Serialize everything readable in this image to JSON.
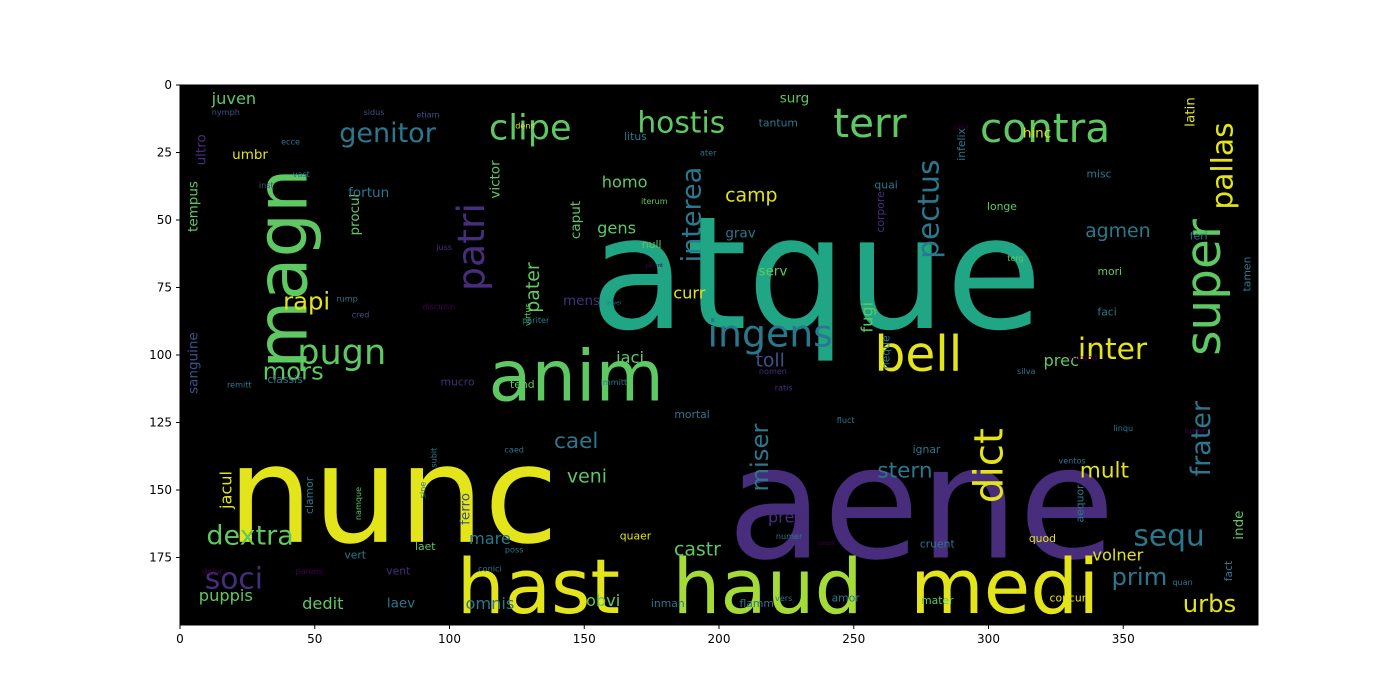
{
  "chart_data": {
    "type": "wordcloud-image",
    "x_axis": {
      "ticks": [
        0,
        50,
        100,
        150,
        200,
        250,
        300,
        350
      ],
      "range": [
        0,
        400
      ]
    },
    "y_axis": {
      "ticks": [
        0,
        25,
        50,
        75,
        100,
        125,
        150,
        175
      ],
      "range": [
        0,
        200
      ],
      "inverted": true
    },
    "background": "#000000",
    "colors": {
      "yellow": "#e3e419",
      "lime": "#a5db36",
      "green": "#5ec962",
      "teal": "#21a685",
      "cyan": "#2a788e",
      "blue": "#3b528b",
      "violet": "#472d7b",
      "purple": "#440154"
    },
    "words": [
      {
        "text": "atque",
        "x": 236,
        "y": 70,
        "size": 58,
        "color": "teal"
      },
      {
        "text": "aene",
        "x": 275,
        "y": 155,
        "size": 58,
        "color": "violet"
      },
      {
        "text": "nunc",
        "x": 79,
        "y": 152,
        "size": 50,
        "color": "yellow"
      },
      {
        "text": "haud",
        "x": 218,
        "y": 186,
        "size": 28,
        "color": "lime"
      },
      {
        "text": "medi",
        "x": 306,
        "y": 186,
        "size": 28,
        "color": "yellow"
      },
      {
        "text": "hast",
        "x": 133,
        "y": 186,
        "size": 28,
        "color": "yellow"
      },
      {
        "text": "anim",
        "x": 147,
        "y": 108,
        "size": 26,
        "color": "green"
      },
      {
        "text": "magn",
        "x": 38,
        "y": 68,
        "size": 26,
        "color": "green",
        "rotate": true
      },
      {
        "text": "bell",
        "x": 274,
        "y": 100,
        "size": 18,
        "color": "yellow"
      },
      {
        "text": "super",
        "x": 380,
        "y": 75,
        "size": 18,
        "color": "green",
        "rotate": true
      },
      {
        "text": "contra",
        "x": 321,
        "y": 16,
        "size": 15,
        "color": "green"
      },
      {
        "text": "terr",
        "x": 256,
        "y": 14,
        "size": 15,
        "color": "green"
      },
      {
        "text": "ingens",
        "x": 219,
        "y": 92,
        "size": 14,
        "color": "cyan"
      },
      {
        "text": "dict",
        "x": 300,
        "y": 141,
        "size": 15,
        "color": "yellow",
        "rotate": true
      },
      {
        "text": "patri",
        "x": 108,
        "y": 60,
        "size": 14,
        "color": "violet",
        "rotate": true
      },
      {
        "text": "pugn",
        "x": 60,
        "y": 99,
        "size": 13,
        "color": "green"
      },
      {
        "text": "clipe",
        "x": 130,
        "y": 16,
        "size": 13,
        "color": "green"
      },
      {
        "text": "hostis",
        "x": 186,
        "y": 14,
        "size": 11,
        "color": "green"
      },
      {
        "text": "genitor",
        "x": 77,
        "y": 18,
        "size": 10,
        "color": "cyan"
      },
      {
        "text": "pectus",
        "x": 278,
        "y": 46,
        "size": 11,
        "color": "cyan",
        "rotate": true
      },
      {
        "text": "pallas",
        "x": 387,
        "y": 30,
        "size": 11,
        "color": "yellow",
        "rotate": true
      },
      {
        "text": "interea",
        "x": 190,
        "y": 48,
        "size": 10,
        "color": "cyan",
        "rotate": true
      },
      {
        "text": "inter",
        "x": 346,
        "y": 98,
        "size": 11,
        "color": "yellow"
      },
      {
        "text": "sequ",
        "x": 367,
        "y": 167,
        "size": 11,
        "color": "cyan"
      },
      {
        "text": "dextra",
        "x": 26,
        "y": 167,
        "size": 10,
        "color": "green"
      },
      {
        "text": "soci",
        "x": 20,
        "y": 183,
        "size": 11,
        "color": "violet"
      },
      {
        "text": "frater",
        "x": 379,
        "y": 131,
        "size": 10,
        "color": "cyan",
        "rotate": true
      },
      {
        "text": "miser",
        "x": 215,
        "y": 138,
        "size": 9,
        "color": "cyan",
        "rotate": true
      },
      {
        "text": "mors",
        "x": 42,
        "y": 106,
        "size": 9,
        "color": "green"
      },
      {
        "text": "rapi",
        "x": 47,
        "y": 80,
        "size": 9,
        "color": "yellow"
      },
      {
        "text": "urbs",
        "x": 382,
        "y": 192,
        "size": 9,
        "color": "yellow"
      },
      {
        "text": "prim",
        "x": 356,
        "y": 182,
        "size": 9,
        "color": "cyan"
      },
      {
        "text": "stern",
        "x": 269,
        "y": 143,
        "size": 8,
        "color": "cyan"
      },
      {
        "text": "mult",
        "x": 343,
        "y": 143,
        "size": 8,
        "color": "yellow"
      },
      {
        "text": "cael",
        "x": 147,
        "y": 132,
        "size": 8,
        "color": "cyan"
      },
      {
        "text": "veni",
        "x": 151,
        "y": 145,
        "size": 7,
        "color": "green"
      },
      {
        "text": "pater",
        "x": 131,
        "y": 75,
        "size": 7,
        "color": "green",
        "rotate": true
      },
      {
        "text": "agmen",
        "x": 348,
        "y": 54,
        "size": 7,
        "color": "cyan"
      },
      {
        "text": "camp",
        "x": 212,
        "y": 41,
        "size": 7,
        "color": "yellow"
      },
      {
        "text": "homo",
        "x": 165,
        "y": 36,
        "size": 6,
        "color": "green"
      },
      {
        "text": "gens",
        "x": 162,
        "y": 53,
        "size": 6,
        "color": "green"
      },
      {
        "text": "curr",
        "x": 189,
        "y": 77,
        "size": 6,
        "color": "yellow"
      },
      {
        "text": "toll",
        "x": 219,
        "y": 102,
        "size": 7,
        "color": "blue"
      },
      {
        "text": "jaci",
        "x": 167,
        "y": 101,
        "size": 6,
        "color": "green"
      },
      {
        "text": "prec",
        "x": 327,
        "y": 102,
        "size": 6,
        "color": "green"
      },
      {
        "text": "prem",
        "x": 226,
        "y": 160,
        "size": 6,
        "color": "violet"
      },
      {
        "text": "castr",
        "x": 192,
        "y": 172,
        "size": 7,
        "color": "green"
      },
      {
        "text": "mare",
        "x": 115,
        "y": 168,
        "size": 6,
        "color": "cyan"
      },
      {
        "text": "obvi",
        "x": 157,
        "y": 191,
        "size": 6,
        "color": "green"
      },
      {
        "text": "omnis",
        "x": 115,
        "y": 192,
        "size": 6,
        "color": "cyan"
      },
      {
        "text": "dedit",
        "x": 53,
        "y": 192,
        "size": 6,
        "color": "green"
      },
      {
        "text": "laev",
        "x": 82,
        "y": 192,
        "size": 5,
        "color": "cyan"
      },
      {
        "text": "puppis",
        "x": 17,
        "y": 189,
        "size": 6,
        "color": "green"
      },
      {
        "text": "volner",
        "x": 348,
        "y": 174,
        "size": 6,
        "color": "yellow"
      },
      {
        "text": "juven",
        "x": 20,
        "y": 5,
        "size": 6,
        "color": "green"
      },
      {
        "text": "procul",
        "x": 65,
        "y": 48,
        "size": 5,
        "color": "green",
        "rotate": true
      },
      {
        "text": "fortun",
        "x": 70,
        "y": 40,
        "size": 5,
        "color": "cyan"
      },
      {
        "text": "fugi",
        "x": 255,
        "y": 86,
        "size": 6,
        "color": "green",
        "rotate": true
      },
      {
        "text": "inde",
        "x": 393,
        "y": 163,
        "size": 5,
        "color": "green",
        "rotate": true
      },
      {
        "text": "latin",
        "x": 375,
        "y": 10,
        "size": 5,
        "color": "yellow",
        "rotate": true
      },
      {
        "text": "ultro",
        "x": 8,
        "y": 24,
        "size": 5,
        "color": "violet",
        "rotate": true
      },
      {
        "text": "umbr",
        "x": 26,
        "y": 26,
        "size": 5,
        "color": "yellow"
      },
      {
        "text": "tempus",
        "x": 5,
        "y": 45,
        "size": 5,
        "color": "green",
        "rotate": true
      },
      {
        "text": "sanguine",
        "x": 5,
        "y": 103,
        "size": 5,
        "color": "blue",
        "rotate": true
      },
      {
        "text": "jacul",
        "x": 17,
        "y": 150,
        "size": 6,
        "color": "yellow",
        "rotate": true
      },
      {
        "text": "ferro",
        "x": 106,
        "y": 157,
        "size": 5,
        "color": "blue",
        "rotate": true
      },
      {
        "text": "surg",
        "x": 228,
        "y": 5,
        "size": 5,
        "color": "green"
      },
      {
        "text": "hinc",
        "x": 318,
        "y": 18,
        "size": 5,
        "color": "yellow"
      },
      {
        "text": "victor",
        "x": 117,
        "y": 35,
        "size": 5,
        "color": "green",
        "rotate": true
      },
      {
        "text": "caput",
        "x": 147,
        "y": 50,
        "size": 5,
        "color": "green",
        "rotate": true
      },
      {
        "text": "grav",
        "x": 208,
        "y": 55,
        "size": 5,
        "color": "cyan"
      },
      {
        "text": "serv",
        "x": 220,
        "y": 69,
        "size": 5,
        "color": "green"
      },
      {
        "text": "null",
        "x": 175,
        "y": 59,
        "size": 4,
        "color": "green"
      },
      {
        "text": "mens",
        "x": 149,
        "y": 80,
        "size": 5,
        "color": "violet"
      },
      {
        "text": "corpore",
        "x": 260,
        "y": 47,
        "size": 4,
        "color": "violet",
        "rotate": true
      },
      {
        "text": "quai",
        "x": 262,
        "y": 37,
        "size": 4,
        "color": "cyan"
      },
      {
        "text": "infelix",
        "x": 290,
        "y": 22,
        "size": 4,
        "color": "cyan",
        "rotate": true
      },
      {
        "text": "longe",
        "x": 305,
        "y": 45,
        "size": 4,
        "color": "green"
      },
      {
        "text": "mori",
        "x": 345,
        "y": 69,
        "size": 4,
        "color": "green"
      },
      {
        "text": "misc",
        "x": 341,
        "y": 33,
        "size": 4,
        "color": "cyan"
      },
      {
        "text": "feri",
        "x": 378,
        "y": 56,
        "size": 4,
        "color": "cyan"
      },
      {
        "text": "faci",
        "x": 344,
        "y": 84,
        "size": 4,
        "color": "cyan"
      },
      {
        "text": "tamen",
        "x": 396,
        "y": 70,
        "size": 4,
        "color": "cyan",
        "rotate": true
      },
      {
        "text": "neque",
        "x": 262,
        "y": 99,
        "size": 4,
        "color": "cyan",
        "rotate": true
      },
      {
        "text": "aequor",
        "x": 334,
        "y": 155,
        "size": 4,
        "color": "cyan",
        "rotate": true
      },
      {
        "text": "quod",
        "x": 320,
        "y": 168,
        "size": 4,
        "color": "yellow"
      },
      {
        "text": "fact",
        "x": 389,
        "y": 180,
        "size": 4,
        "color": "cyan",
        "rotate": true
      },
      {
        "text": "cruent",
        "x": 281,
        "y": 170,
        "size": 4,
        "color": "cyan"
      },
      {
        "text": "mater",
        "x": 281,
        "y": 191,
        "size": 4,
        "color": "green"
      },
      {
        "text": "concuri",
        "x": 330,
        "y": 190,
        "size": 4,
        "color": "yellow"
      },
      {
        "text": "amor",
        "x": 247,
        "y": 190,
        "size": 4,
        "color": "cyan"
      },
      {
        "text": "flamm",
        "x": 214,
        "y": 192,
        "size": 4,
        "color": "cyan"
      },
      {
        "text": "inman",
        "x": 181,
        "y": 192,
        "size": 4,
        "color": "cyan"
      },
      {
        "text": "laet",
        "x": 91,
        "y": 171,
        "size": 4,
        "color": "green"
      },
      {
        "text": "classis",
        "x": 39,
        "y": 109,
        "size": 4,
        "color": "cyan"
      },
      {
        "text": "tend",
        "x": 127,
        "y": 111,
        "size": 4,
        "color": "green"
      },
      {
        "text": "mucro",
        "x": 103,
        "y": 110,
        "size": 4,
        "color": "violet"
      },
      {
        "text": "clamor",
        "x": 48,
        "y": 152,
        "size": 4,
        "color": "cyan",
        "rotate": true
      },
      {
        "text": "mortal",
        "x": 190,
        "y": 122,
        "size": 4,
        "color": "cyan"
      },
      {
        "text": "ignar",
        "x": 277,
        "y": 135,
        "size": 4,
        "color": "cyan"
      },
      {
        "text": "quaer",
        "x": 169,
        "y": 167,
        "size": 4,
        "color": "yellow"
      },
      {
        "text": "vert",
        "x": 65,
        "y": 174,
        "size": 4,
        "color": "cyan"
      },
      {
        "text": "vent",
        "x": 81,
        "y": 180,
        "size": 4,
        "color": "violet"
      },
      {
        "text": "dolor",
        "x": 12,
        "y": 180,
        "size": 3,
        "color": "purple"
      },
      {
        "text": "tantum",
        "x": 222,
        "y": 14,
        "size": 4,
        "color": "cyan"
      },
      {
        "text": "litus",
        "x": 169,
        "y": 19,
        "size": 4,
        "color": "cyan"
      },
      {
        "text": "ater",
        "x": 196,
        "y": 25,
        "size": 3,
        "color": "cyan"
      },
      {
        "text": "ecce",
        "x": 41,
        "y": 21,
        "size": 3,
        "color": "cyan"
      },
      {
        "text": "iterum",
        "x": 176,
        "y": 43,
        "size": 3,
        "color": "green"
      },
      {
        "text": "juss",
        "x": 98,
        "y": 60,
        "size": 3,
        "color": "violet"
      },
      {
        "text": "virtus",
        "x": 129,
        "y": 85,
        "size": 3,
        "color": "green",
        "rotate": true
      },
      {
        "text": "nomen",
        "x": 220,
        "y": 106,
        "size": 3,
        "color": "violet"
      },
      {
        "text": "ratis",
        "x": 224,
        "y": 112,
        "size": 3,
        "color": "violet"
      },
      {
        "text": "immitt",
        "x": 161,
        "y": 110,
        "size": 3,
        "color": "cyan"
      },
      {
        "text": "secund",
        "x": 335,
        "y": 101,
        "size": 3,
        "color": "purple"
      },
      {
        "text": "linqu",
        "x": 350,
        "y": 127,
        "size": 3,
        "color": "cyan"
      },
      {
        "text": "vers",
        "x": 224,
        "y": 190,
        "size": 3,
        "color": "cyan"
      },
      {
        "text": "numer",
        "x": 226,
        "y": 167,
        "size": 3,
        "color": "cyan"
      },
      {
        "text": "namque",
        "x": 66,
        "y": 155,
        "size": 3,
        "color": "green",
        "rotate": true
      },
      {
        "text": "sine",
        "x": 90,
        "y": 150,
        "size": 3,
        "color": "cyan",
        "rotate": true
      },
      {
        "text": "subit",
        "x": 94,
        "y": 138,
        "size": 3,
        "color": "cyan",
        "rotate": true
      },
      {
        "text": "caed",
        "x": 124,
        "y": 135,
        "size": 3,
        "color": "cyan"
      },
      {
        "text": "remitt",
        "x": 22,
        "y": 111,
        "size": 3,
        "color": "cyan"
      },
      {
        "text": "cred",
        "x": 67,
        "y": 85,
        "size": 3,
        "color": "blue"
      },
      {
        "text": "rump",
        "x": 62,
        "y": 79,
        "size": 3,
        "color": "cyan"
      },
      {
        "text": "vast",
        "x": 45,
        "y": 33,
        "size": 3,
        "color": "cyan"
      },
      {
        "text": "inst",
        "x": 32,
        "y": 37,
        "size": 3,
        "color": "blue"
      },
      {
        "text": "sidus",
        "x": 72,
        "y": 10,
        "size": 3,
        "color": "blue"
      },
      {
        "text": "nymph",
        "x": 17,
        "y": 10,
        "size": 3,
        "color": "blue"
      },
      {
        "text": "dens",
        "x": 128,
        "y": 15,
        "size": 3,
        "color": "yellow"
      },
      {
        "text": "fluct",
        "x": 247,
        "y": 124,
        "size": 3,
        "color": "cyan"
      },
      {
        "text": "ventos",
        "x": 331,
        "y": 139,
        "size": 3,
        "color": "cyan"
      },
      {
        "text": "lumin",
        "x": 377,
        "y": 128,
        "size": 3,
        "color": "purple"
      },
      {
        "text": "parens",
        "x": 48,
        "y": 180,
        "size": 3,
        "color": "purple"
      },
      {
        "text": "conici",
        "x": 115,
        "y": 179,
        "size": 3,
        "color": "cyan"
      },
      {
        "text": "poss",
        "x": 124,
        "y": 172,
        "size": 3,
        "color": "cyan"
      },
      {
        "text": "terg",
        "x": 310,
        "y": 64,
        "size": 3,
        "color": "green"
      },
      {
        "text": "pariter",
        "x": 132,
        "y": 87,
        "size": 3,
        "color": "cyan"
      },
      {
        "text": "disciplin",
        "x": 96,
        "y": 82,
        "size": 3,
        "color": "purple"
      },
      {
        "text": "adver",
        "x": 161,
        "y": 81,
        "size": 2,
        "color": "cyan"
      },
      {
        "text": "etiam",
        "x": 92,
        "y": 11,
        "size": 3,
        "color": "blue"
      },
      {
        "text": "silva",
        "x": 314,
        "y": 106,
        "size": 3,
        "color": "cyan"
      },
      {
        "text": "comit",
        "x": 290,
        "y": 16,
        "size": 2,
        "color": "purple"
      },
      {
        "text": "quan",
        "x": 372,
        "y": 184,
        "size": 3,
        "color": "cyan"
      },
      {
        "text": "parent",
        "x": 176,
        "y": 67,
        "size": 2,
        "color": "purple"
      },
      {
        "text": "corpus",
        "x": 240,
        "y": 170,
        "size": 2,
        "color": "purple"
      }
    ]
  }
}
